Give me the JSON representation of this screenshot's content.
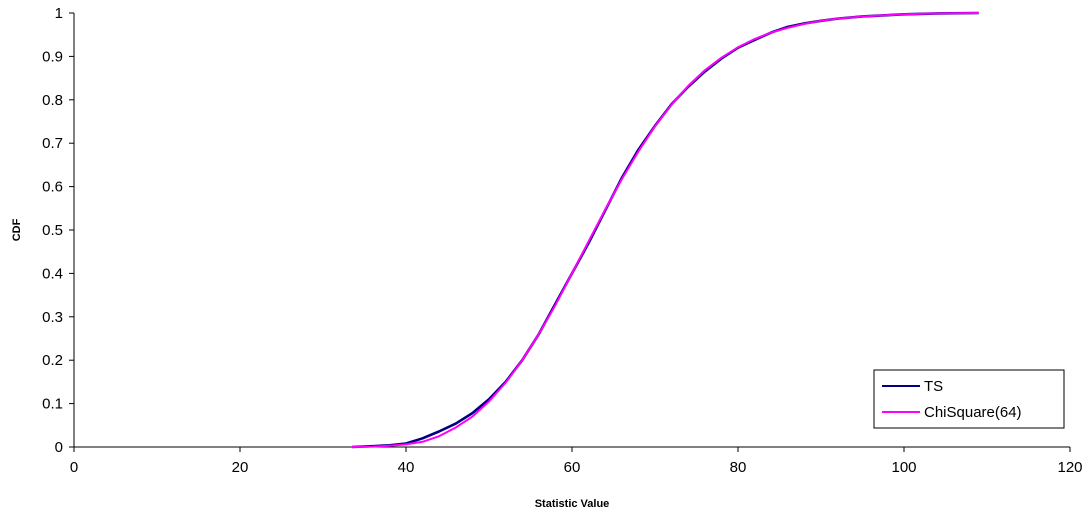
{
  "chart_data": {
    "type": "line",
    "title": "",
    "xlabel": "Statistic Value",
    "ylabel": "CDF",
    "xlim": [
      0,
      120
    ],
    "ylim": [
      0,
      1
    ],
    "x_ticks": [
      "0",
      "20",
      "40",
      "60",
      "80",
      "100",
      "120"
    ],
    "y_ticks": [
      "0",
      "0.1",
      "0.2",
      "0.3",
      "0.4",
      "0.5",
      "0.6",
      "0.7",
      "0.8",
      "0.9",
      "1"
    ],
    "grid": false,
    "legend_position": "bottom-right",
    "series": [
      {
        "name": "TS",
        "color": "#000080",
        "points": [
          [
            33.5,
            0.0
          ],
          [
            36,
            0.002
          ],
          [
            38,
            0.004
          ],
          [
            40,
            0.008
          ],
          [
            42,
            0.02
          ],
          [
            44,
            0.036
          ],
          [
            46,
            0.054
          ],
          [
            48,
            0.078
          ],
          [
            50,
            0.11
          ],
          [
            52,
            0.15
          ],
          [
            54,
            0.2
          ],
          [
            56,
            0.26
          ],
          [
            58,
            0.33
          ],
          [
            60,
            0.4
          ],
          [
            62,
            0.47
          ],
          [
            64,
            0.545
          ],
          [
            66,
            0.62
          ],
          [
            68,
            0.685
          ],
          [
            70,
            0.74
          ],
          [
            72,
            0.79
          ],
          [
            74,
            0.83
          ],
          [
            76,
            0.865
          ],
          [
            78,
            0.895
          ],
          [
            80,
            0.92
          ],
          [
            82,
            0.938
          ],
          [
            84,
            0.955
          ],
          [
            86,
            0.968
          ],
          [
            88,
            0.976
          ],
          [
            90,
            0.982
          ],
          [
            92,
            0.987
          ],
          [
            95,
            0.992
          ],
          [
            98,
            0.995
          ],
          [
            100,
            0.997
          ],
          [
            104,
            0.999
          ],
          [
            109,
            1.0
          ]
        ]
      },
      {
        "name": "ChiSquare(64)",
        "color": "#ff00ff",
        "points": [
          [
            33.5,
            0.0
          ],
          [
            36,
            0.001
          ],
          [
            38,
            0.003
          ],
          [
            40,
            0.006
          ],
          [
            42,
            0.012
          ],
          [
            44,
            0.025
          ],
          [
            46,
            0.045
          ],
          [
            48,
            0.07
          ],
          [
            50,
            0.105
          ],
          [
            52,
            0.148
          ],
          [
            54,
            0.2
          ],
          [
            56,
            0.26
          ],
          [
            58,
            0.327
          ],
          [
            60,
            0.4
          ],
          [
            62,
            0.474
          ],
          [
            64,
            0.547
          ],
          [
            66,
            0.617
          ],
          [
            68,
            0.681
          ],
          [
            70,
            0.739
          ],
          [
            72,
            0.789
          ],
          [
            74,
            0.832
          ],
          [
            76,
            0.868
          ],
          [
            78,
            0.897
          ],
          [
            80,
            0.921
          ],
          [
            82,
            0.94
          ],
          [
            84,
            0.955
          ],
          [
            86,
            0.966
          ],
          [
            88,
            0.975
          ],
          [
            90,
            0.982
          ],
          [
            92,
            0.987
          ],
          [
            95,
            0.992
          ],
          [
            98,
            0.995
          ],
          [
            100,
            0.997
          ],
          [
            104,
            0.999
          ],
          [
            109,
            1.0
          ]
        ]
      }
    ]
  }
}
